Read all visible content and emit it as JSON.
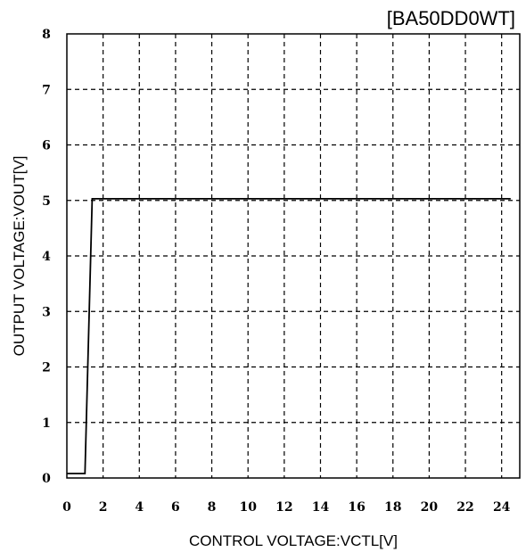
{
  "chart_data": {
    "type": "line",
    "title": "[BA50DD0WT]",
    "xlabel": "CONTROL VOLTAGE:VCTL[V]",
    "ylabel": "OUTPUT VOLTAGE:VOUT[V]",
    "xlim": [
      0,
      25
    ],
    "ylim": [
      0,
      8
    ],
    "xticks": [
      "0",
      "2",
      "4",
      "6",
      "8",
      "10",
      "12",
      "14",
      "16",
      "18",
      "20",
      "22",
      "24"
    ],
    "yticks": [
      "0",
      "1",
      "2",
      "3",
      "4",
      "5",
      "6",
      "7",
      "8"
    ],
    "grid": true,
    "series": [
      {
        "x": [
          0,
          1.0,
          1.4,
          24.5
        ],
        "y": [
          0.08,
          0.08,
          5.03,
          5.03
        ]
      }
    ]
  }
}
